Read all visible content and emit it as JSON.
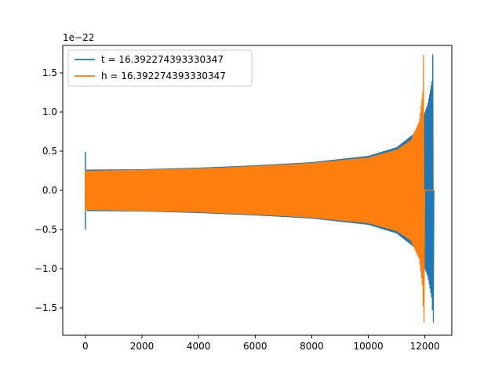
{
  "chart_data": {
    "type": "line",
    "title": "",
    "xlabel": "",
    "ylabel": "",
    "y_offset_text": "1e−22",
    "xlim": [
      -800,
      12950
    ],
    "ylim": [
      -1.85,
      1.85
    ],
    "x_ticks": [
      0,
      2000,
      4000,
      6000,
      8000,
      10000,
      12000
    ],
    "x_tick_labels": [
      "0",
      "2000",
      "4000",
      "6000",
      "8000",
      "10000",
      "12000"
    ],
    "y_ticks": [
      -1.5,
      -1.0,
      -0.5,
      0.0,
      0.5,
      1.0,
      1.5
    ],
    "y_tick_labels": [
      "−1.5",
      "−1.0",
      "−0.5",
      "0.0",
      "0.5",
      "1.0",
      "1.5"
    ],
    "grid": false,
    "legend_position": "top-left",
    "series": [
      {
        "name": "t = 16.392274393330347",
        "color": "#1f77b4",
        "start_spike": {
          "x": 0,
          "ymax": 0.49,
          "ymin": -0.5
        },
        "envelope": [
          [
            50,
            0.265
          ],
          [
            2000,
            0.27
          ],
          [
            4000,
            0.29
          ],
          [
            6000,
            0.32
          ],
          [
            8000,
            0.36
          ],
          [
            10000,
            0.44
          ],
          [
            11000,
            0.55
          ],
          [
            11600,
            0.72
          ],
          [
            11900,
            0.9
          ],
          [
            12100,
            1.1
          ],
          [
            12250,
            1.4
          ],
          [
            12280,
            1.74
          ]
        ],
        "merger": {
          "x": 12280,
          "ymax": 1.74,
          "ymin": -1.69
        },
        "tail_end_x": 12330
      },
      {
        "name": "h = 16.392274393330347",
        "color": "#ff7f0e",
        "start_spike": {
          "x": 0,
          "ymax": 0.25,
          "ymin": -0.27
        },
        "envelope": [
          [
            0,
            0.25
          ],
          [
            2000,
            0.265
          ],
          [
            4000,
            0.28
          ],
          [
            6000,
            0.31
          ],
          [
            8000,
            0.35
          ],
          [
            10000,
            0.42
          ],
          [
            11000,
            0.52
          ],
          [
            11500,
            0.64
          ],
          [
            11800,
            0.88
          ],
          [
            11920,
            1.25
          ],
          [
            11950,
            1.73
          ]
        ],
        "merger": {
          "x": 11950,
          "ymax": 1.73,
          "ymin": -1.69
        },
        "tail_end_x": 12330
      }
    ]
  }
}
